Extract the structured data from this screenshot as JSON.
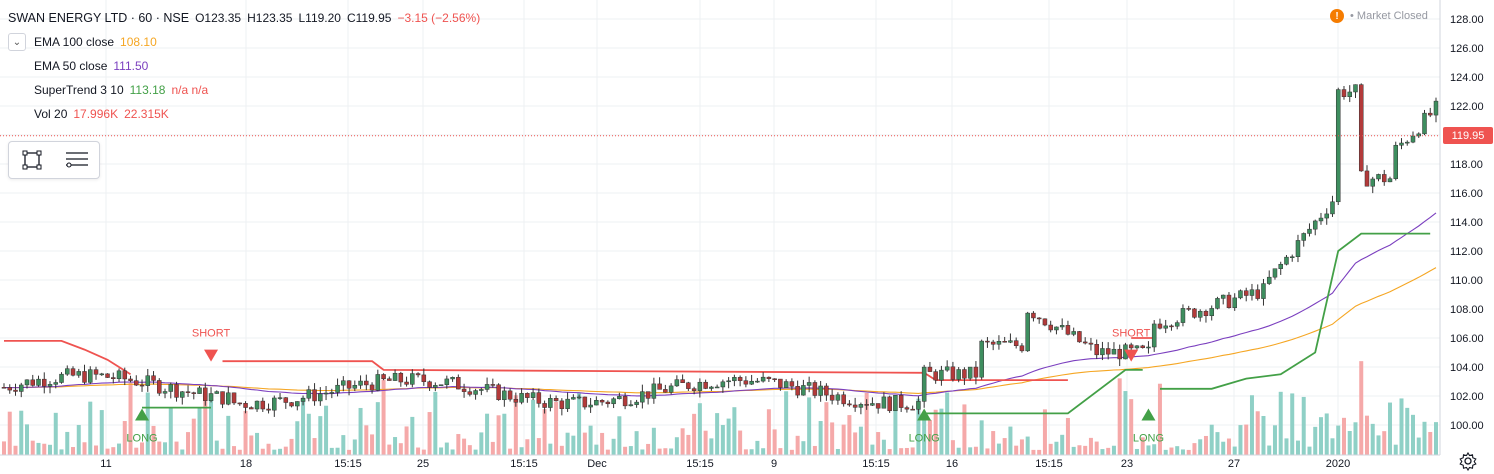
{
  "header": {
    "symbol": "SWAN ENERGY LTD · 60 · NSE",
    "open": "O123.35",
    "high": "H123.35",
    "low": "L119.20",
    "close": "C119.95",
    "change": "−3.15 (−2.56%)"
  },
  "indicators": [
    {
      "name": "EMA 100 close",
      "value": "108.10",
      "value2": "",
      "color": "#f5a623"
    },
    {
      "name": "EMA 50 close",
      "value": "111.50",
      "value2": "",
      "color": "#7b3fbf"
    },
    {
      "name": "SuperTrend 3 10",
      "value": "113.18",
      "value2": "n/a  n/a",
      "color": "#43a047",
      "color2": "#ef5350"
    },
    {
      "name": "Vol 20",
      "value": "17.996K",
      "value2": "22.315K",
      "color": "#ef5350",
      "color2": "#ef5350"
    }
  ],
  "status": {
    "icon": "!",
    "label": "• Market Closed"
  },
  "last_price": "119.95",
  "icons": {
    "collapse": "chevron-down-icon",
    "rectangle": "rectangle-tool-icon",
    "list": "list-icon",
    "settings": "settings-gear-icon"
  },
  "colors": {
    "up": "#26a69a",
    "down": "#ef5350",
    "candle_up_fill": "#3e8e5f",
    "candle_down_fill": "#b33a3a",
    "grid": "#eef0f3",
    "supertrend_up": "#43a047",
    "supertrend_down": "#ef5350",
    "ema100": "#f5a623",
    "ema50": "#7b3fbf",
    "vol_up": "#8fd0c6",
    "vol_down": "#f5a9a9"
  },
  "chart_data": {
    "type": "candlestick",
    "y_ticks": [
      "128.00",
      "126.00",
      "124.00",
      "122.00",
      "120.00",
      "118.00",
      "116.00",
      "114.00",
      "112.00",
      "110.00",
      "108.00",
      "106.00",
      "104.00",
      "102.00",
      "100.00"
    ],
    "ylim": [
      99,
      129
    ],
    "x_ticks": [
      "11",
      "18",
      "15:15",
      "25",
      "15:15",
      "Dec",
      "15:15",
      "9",
      "15:15",
      "16",
      "15:15",
      "23",
      "27",
      "2020"
    ],
    "signals": [
      {
        "label": "LONG",
        "type": "long",
        "bar": 24
      },
      {
        "label": "SHORT",
        "type": "short",
        "bar": 36
      },
      {
        "label": "LONG",
        "type": "long",
        "bar": 160
      },
      {
        "label": "SHORT",
        "type": "short",
        "bar": 196
      },
      {
        "label": "LONG",
        "type": "long",
        "bar": 199
      }
    ],
    "grid": true
  }
}
